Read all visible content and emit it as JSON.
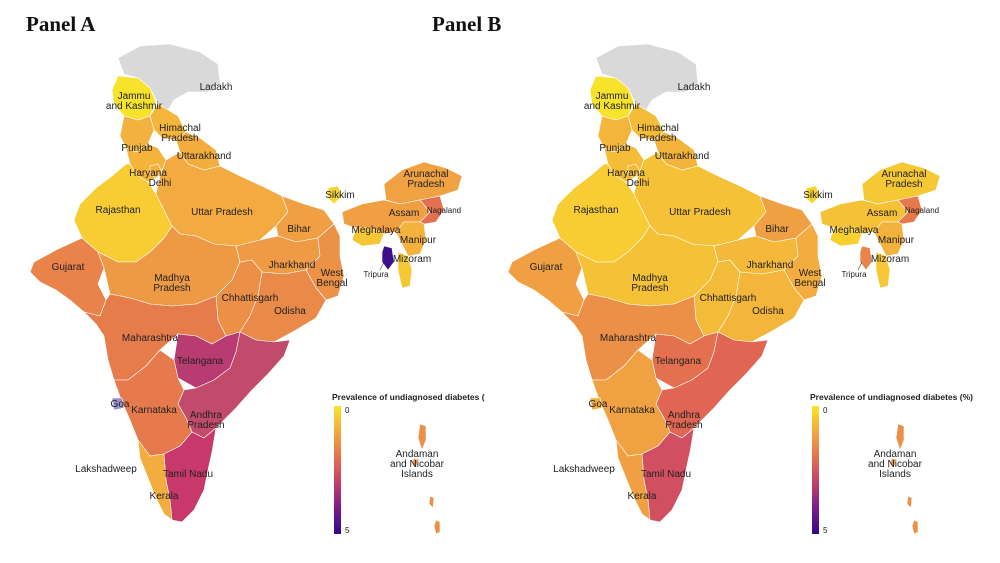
{
  "panels": [
    {
      "title": "Panel A",
      "legend": {
        "title": "Prevalence of undiagnosed diabetes (",
        "min": "0",
        "max": "5"
      },
      "colors": {
        "ladakh": "#d9d9d9",
        "jk": "#f7e22c",
        "himachal": "#f4b63a",
        "punjab": "#f3b23d",
        "uttarakhand": "#f3ad3e",
        "haryana": "#f4b43b",
        "delhi": "#f3b13d",
        "rajasthan": "#f7cd33",
        "up": "#f3aa40",
        "bihar": "#f0a042",
        "gujarat": "#e98349",
        "mp": "#ee9a45",
        "chhattisgarh": "#ec8f47",
        "jharkhand": "#ef9a44",
        "wb": "#ec9247",
        "odisha": "#ea8a48",
        "maharashtra": "#e77c4b",
        "telangana": "#b83c72",
        "ap": "#c24a6a",
        "karnataka": "#e67a4c",
        "goa": "#9a8fd0",
        "tn": "#c9386a",
        "kerala": "#f3ad3e",
        "sikkim": "#f7d62f",
        "arunachal": "#f0a242",
        "assam": "#f0a042",
        "meghalaya": "#f6c634",
        "nagaland": "#e3714f",
        "manipur": "#f3b13d",
        "mizoram": "#f6c833",
        "tripura": "#3b0f8c",
        "islands": "#eb8e47"
      }
    },
    {
      "title": "Panel B",
      "legend": {
        "title": "Prevalence of undiagnosed diabetes (%)",
        "min": "0",
        "max": "5"
      },
      "colors": {
        "ladakh": "#d9d9d9",
        "jk": "#f7e22c",
        "himachal": "#f5bc38",
        "punjab": "#f4b63a",
        "uttarakhand": "#f4b43b",
        "haryana": "#f5bc38",
        "delhi": "#f4b83a",
        "rajasthan": "#f7cd33",
        "up": "#f5c137",
        "bihar": "#efa043",
        "gujarat": "#f0a042",
        "mp": "#f5c137",
        "chhattisgarh": "#f4bb39",
        "jharkhand": "#f4b93a",
        "wb": "#f2ac3f",
        "odisha": "#f4b63a",
        "maharashtra": "#ec8f47",
        "telangana": "#e3714f",
        "ap": "#e06553",
        "karnataka": "#f0a242",
        "goa": "#f2ac3f",
        "tn": "#d24f62",
        "kerala": "#f0a042",
        "sikkim": "#f7d62f",
        "arunachal": "#f6c834",
        "assam": "#f5c137",
        "meghalaya": "#f7d02f",
        "nagaland": "#e7784c",
        "manipur": "#f3b13d",
        "mizoram": "#f6c833",
        "tripura": "#e98349",
        "islands": "#ec8f47"
      }
    }
  ],
  "labels": {
    "ladakh": "Ladakh",
    "jk1": "Jammu",
    "jk2": "and Kashmir",
    "himachal1": "Himachal",
    "himachal2": "Pradesh",
    "punjab": "Punjab",
    "uttarakhand": "Uttarakhand",
    "haryana": "Haryana",
    "delhi": "Delhi",
    "rajasthan": "Rajasthan",
    "up": "Uttar Pradesh",
    "bihar": "Bihar",
    "sikkim": "Sikkim",
    "arunachal1": "Arunachal",
    "arunachal2": "Pradesh",
    "assam": "Assam",
    "nagaland": "Nagaland",
    "meghalaya": "Meghalaya",
    "manipur": "Manipur",
    "mizoram": "Mizoram",
    "tripura": "Tripura",
    "gujarat": "Gujarat",
    "mp1": "Madhya",
    "mp2": "Pradesh",
    "jharkhand": "Jharkhand",
    "wb1": "West",
    "wb2": "Bengal",
    "chhattisgarh": "Chhattisgarh",
    "odisha": "Odisha",
    "maharashtra": "Maharashtra",
    "telangana": "Telangana",
    "goa": "Goa",
    "karnataka": "Karnataka",
    "ap1": "Andhra",
    "ap2": "Pradesh",
    "lakshadweep": "Lakshadweep",
    "tn": "Tamil Nadu",
    "kerala": "Kerala",
    "islands1": "Andaman",
    "islands2": "and Nicobar",
    "islands3": "Islands"
  },
  "colorscale": [
    "#f9e52b",
    "#f3a83f",
    "#e3714f",
    "#c23e6c",
    "#7a1d88",
    "#2d0a8c"
  ]
}
